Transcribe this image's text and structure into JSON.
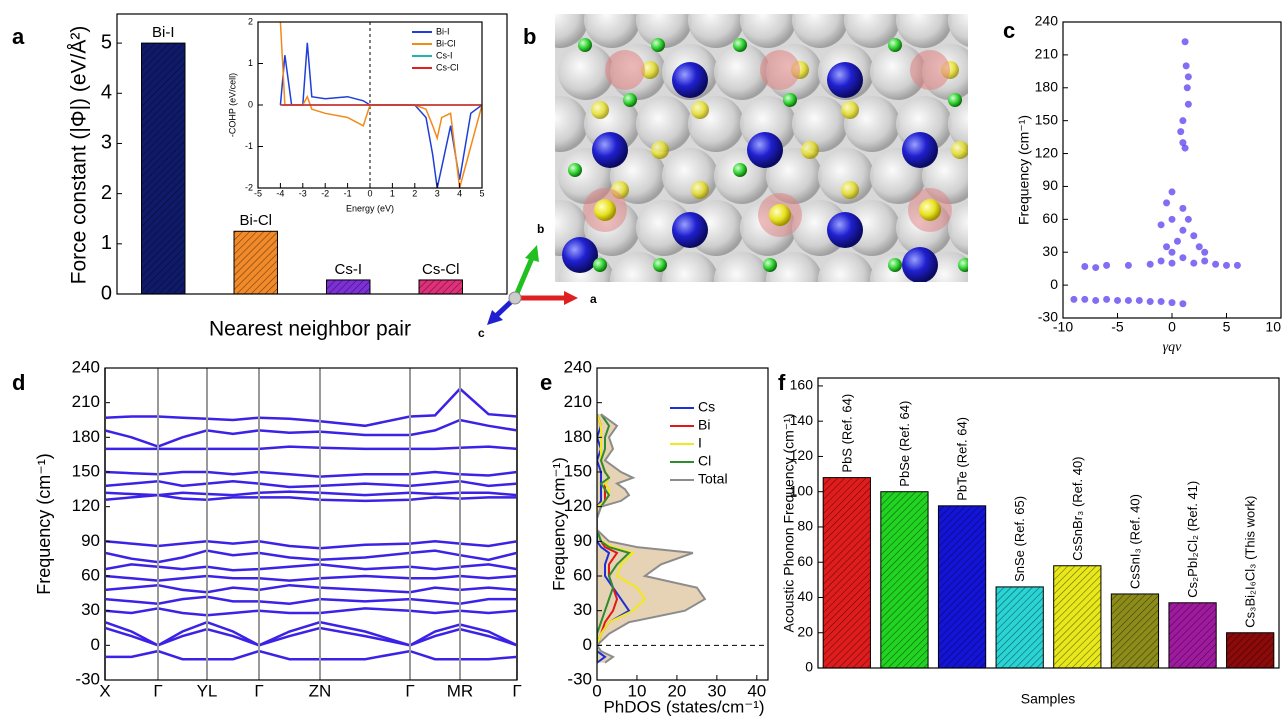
{
  "structure": {
    "label": "b",
    "axes": [
      "a",
      "b",
      "c"
    ]
  },
  "chart_data": [
    {
      "type": "bar",
      "label": "a",
      "y_label": "Force constant (|Φ|) (eV/Å²)",
      "x_label": "Nearest neighbor pair",
      "categories": [
        "Bi-I",
        "Bi-Cl",
        "Cs-I",
        "Cs-Cl"
      ],
      "values": [
        5.0,
        1.25,
        0.28,
        0.28
      ],
      "colors": [
        "#0f1a6b",
        "#f28a2a",
        "#7d2fd8",
        "#e0307a"
      ],
      "hatch": true,
      "ylim": [
        0,
        5.58
      ],
      "yticks": [
        0,
        1,
        2,
        3,
        4,
        5
      ]
    },
    {
      "type": "line",
      "y_label": "-COHP (eV/cell)",
      "x_label": "Energy (eV)",
      "x": [
        -4,
        -3.8,
        -3.5,
        -3,
        -2.8,
        -2.6,
        -2,
        -1,
        -0.3,
        0,
        2,
        2.5,
        2.8,
        3,
        3.2,
        3.6,
        4,
        4.5,
        5
      ],
      "series": [
        {
          "name": "Bi-I",
          "color": "#1f3fd8",
          "values": [
            0,
            1.2,
            0,
            0,
            1.5,
            0.2,
            0.15,
            0.2,
            0.1,
            0,
            0,
            -0.3,
            -1.2,
            -2,
            -1.5,
            -0.5,
            -1.8,
            -0.2,
            0
          ]
        },
        {
          "name": "Bi-Cl",
          "color": "#f28a1a",
          "values": [
            2,
            0,
            0,
            0,
            0.2,
            -0.1,
            -0.2,
            -0.3,
            -0.5,
            0,
            0,
            -0.1,
            -0.5,
            -0.8,
            -0.3,
            -0.2,
            -2,
            -1,
            0
          ]
        },
        {
          "name": "Cs-I",
          "color": "#1fb5b5",
          "values": [
            0,
            0,
            0,
            0,
            0,
            0,
            0,
            0,
            0,
            0,
            0,
            0,
            0,
            0,
            0,
            0,
            0,
            0,
            0
          ]
        },
        {
          "name": "Cs-Cl",
          "color": "#e0201e",
          "values": [
            0,
            0,
            0,
            0,
            0,
            0,
            0,
            0,
            0,
            0,
            0,
            0,
            0,
            0,
            0,
            0,
            0,
            0,
            0
          ]
        }
      ],
      "xlim": [
        -5,
        5
      ],
      "xticks": [
        -5,
        -4,
        -3,
        -2,
        -1,
        0,
        1,
        2,
        3,
        4,
        5
      ],
      "ylim": [
        -2,
        2
      ],
      "yticks": [
        -2,
        -1,
        0,
        1,
        2
      ]
    },
    {
      "type": "scatter",
      "label": "c",
      "y_label": "Frequency (cm⁻¹)",
      "x_label": "γqν",
      "color": "#5b3cf0",
      "x": [
        -9,
        -8,
        -7,
        -6,
        -5,
        -4,
        -3,
        -2,
        -1,
        0,
        1,
        -8,
        -6,
        -4,
        -2,
        0,
        2,
        4,
        5,
        6,
        -7,
        3,
        1,
        -1,
        0,
        0.5,
        1,
        1.5,
        -0.5,
        2,
        2.5,
        3,
        0,
        -0.5,
        0,
        -1,
        1,
        1,
        0.8,
        1,
        1.2,
        1.5,
        1.4,
        1.3,
        1.2,
        1.5
      ],
      "values": [
        -13,
        -13,
        -14,
        -13,
        -14,
        -14,
        -14,
        -15,
        -15,
        -16,
        -17,
        17,
        18,
        18,
        19,
        20,
        20,
        19,
        18,
        18,
        16,
        22,
        25,
        22,
        30,
        40,
        50,
        60,
        35,
        45,
        35,
        30,
        60,
        75,
        85,
        55,
        70,
        130,
        140,
        150,
        125,
        165,
        180,
        200,
        222,
        190
      ],
      "xlim": [
        -10,
        10
      ],
      "xticks": [
        -10,
        -5,
        0,
        5,
        10
      ],
      "ylim": [
        -30,
        240
      ],
      "yticks": [
        -30,
        0,
        30,
        60,
        90,
        120,
        150,
        180,
        210,
        240
      ]
    },
    {
      "type": "line",
      "label": "d",
      "y_label": "Frequency (cm⁻¹)",
      "color": "#3b22e6",
      "xgrid": true,
      "x": [
        0,
        0.265,
        0.53,
        0.775,
        1.02,
        1.28,
        1.54,
        1.845,
        2.15,
        2.6,
        3.05,
        3.3,
        3.55,
        3.835,
        4.12
      ],
      "xticks": [
        {
          "value": 0,
          "label": "X"
        },
        {
          "value": 0.53,
          "label": "Γ"
        },
        {
          "value": 1.02,
          "label": "YL"
        },
        {
          "value": 1.54,
          "label": "Γ"
        },
        {
          "value": 2.15,
          "label": "ZN"
        },
        {
          "value": 3.05,
          "label": "Γ"
        },
        {
          "value": 3.55,
          "label": "MR"
        },
        {
          "value": 4.12,
          "label": "Γ"
        }
      ],
      "series": [
        {
          "values": [
            197,
            198,
            198,
            197,
            196,
            195,
            197,
            196,
            194,
            190,
            198,
            199,
            222,
            200,
            198
          ]
        },
        {
          "values": [
            186,
            180,
            172,
            180,
            186,
            183,
            186,
            184,
            185,
            182,
            182,
            186,
            195,
            190,
            186
          ]
        },
        {
          "values": [
            170,
            170,
            170,
            170,
            170,
            170,
            170,
            172,
            171,
            170,
            170,
            170,
            171,
            172,
            170
          ]
        },
        {
          "values": [
            150,
            149,
            148,
            150,
            150,
            148,
            150,
            148,
            146,
            148,
            148,
            150,
            148,
            147,
            150
          ]
        },
        {
          "values": [
            138,
            140,
            142,
            138,
            140,
            142,
            140,
            137,
            138,
            140,
            138,
            140,
            142,
            138,
            140
          ]
        },
        {
          "values": [
            132,
            131,
            130,
            132,
            131,
            130,
            132,
            133,
            132,
            130,
            132,
            131,
            132,
            132,
            130
          ]
        },
        {
          "values": [
            126,
            128,
            130,
            127,
            126,
            128,
            128,
            128,
            126,
            125,
            126,
            128,
            127,
            128,
            128
          ]
        },
        {
          "values": [
            90,
            88,
            86,
            88,
            90,
            88,
            90,
            86,
            84,
            87,
            88,
            90,
            88,
            86,
            90
          ]
        },
        {
          "values": [
            80,
            75,
            72,
            76,
            82,
            78,
            80,
            76,
            74,
            76,
            80,
            82,
            78,
            74,
            80
          ]
        },
        {
          "values": [
            66,
            70,
            68,
            66,
            68,
            65,
            66,
            68,
            70,
            66,
            68,
            66,
            68,
            70,
            66
          ]
        },
        {
          "values": [
            60,
            58,
            56,
            58,
            60,
            58,
            58,
            56,
            58,
            60,
            58,
            58,
            60,
            58,
            60
          ]
        },
        {
          "values": [
            48,
            50,
            52,
            48,
            46,
            50,
            48,
            52,
            50,
            48,
            46,
            50,
            48,
            50,
            48
          ]
        },
        {
          "values": [
            40,
            38,
            36,
            40,
            42,
            38,
            38,
            36,
            40,
            38,
            40,
            38,
            36,
            40,
            40
          ]
        },
        {
          "values": [
            30,
            28,
            32,
            28,
            26,
            28,
            30,
            28,
            28,
            32,
            30,
            28,
            30,
            28,
            30
          ]
        },
        {
          "values": [
            20,
            12,
            0,
            12,
            20,
            12,
            0,
            12,
            20,
            12,
            0,
            12,
            18,
            12,
            0
          ]
        },
        {
          "values": [
            15,
            8,
            0,
            8,
            14,
            8,
            0,
            8,
            15,
            8,
            0,
            8,
            14,
            8,
            0
          ]
        },
        {
          "values": [
            -10,
            -10,
            -5,
            -12,
            -12,
            -12,
            -5,
            -12,
            -12,
            -12,
            -5,
            -12,
            -12,
            -12,
            -10
          ]
        }
      ],
      "xlim": [
        0,
        4.12
      ],
      "ylim": [
        -30,
        240
      ],
      "yticks": [
        -30,
        0,
        30,
        60,
        90,
        120,
        150,
        180,
        210,
        240
      ]
    },
    {
      "type": "line",
      "orientation": "horizontal",
      "label": "e",
      "y_label": "Frequency (cm⁻¹)",
      "x_label": "PhDOS (states/cm⁻¹)",
      "y": [
        -15,
        -10,
        -5,
        0,
        10,
        20,
        30,
        40,
        50,
        60,
        70,
        80,
        85,
        90,
        100,
        110,
        120,
        125,
        130,
        135,
        140,
        145,
        150,
        160,
        170,
        180,
        190,
        200
      ],
      "series": [
        {
          "name": "Cs",
          "color": "#1f2fd8",
          "values": [
            0,
            2,
            0,
            0,
            1,
            3,
            8,
            6,
            4,
            2,
            2,
            3,
            1,
            0,
            0,
            0,
            0,
            1,
            1,
            1,
            1,
            1,
            1,
            0,
            1,
            0,
            1,
            0
          ]
        },
        {
          "name": "Bi",
          "color": "#e01818",
          "values": [
            0,
            0,
            0,
            0,
            1,
            2,
            4,
            5,
            4,
            3,
            3,
            5,
            2,
            1,
            0,
            0,
            0,
            2,
            2,
            2,
            2,
            3,
            2,
            1,
            1,
            1,
            1,
            0
          ]
        },
        {
          "name": "I",
          "color": "#f2e81a",
          "values": [
            0,
            0,
            0,
            0,
            1,
            3,
            9,
            12,
            10,
            5,
            6,
            9,
            4,
            1,
            0,
            0,
            0,
            2,
            3,
            3,
            2,
            3,
            2,
            1,
            1,
            1,
            1,
            0
          ]
        },
        {
          "name": "Cl",
          "color": "#2e8b2e",
          "values": [
            0,
            0,
            0,
            0,
            0,
            1,
            2,
            3,
            4,
            3,
            5,
            8,
            3,
            1,
            0,
            0,
            1,
            2,
            3,
            2,
            1,
            3,
            2,
            1,
            2,
            2,
            3,
            1
          ]
        },
        {
          "name": "Total",
          "color": "#8c8c8c",
          "fill": "#e6d2b5",
          "values": [
            2,
            4,
            1,
            0,
            3,
            8,
            22,
            27,
            25,
            12,
            16,
            24,
            10,
            3,
            0,
            0,
            1,
            6,
            8,
            7,
            5,
            9,
            6,
            2,
            4,
            3,
            5,
            1
          ]
        }
      ],
      "xlim": [
        0,
        42.8
      ],
      "xticks": [
        0,
        10,
        20,
        30,
        40
      ],
      "ylim": [
        -30,
        240
      ],
      "yticks": [
        -30,
        0,
        30,
        60,
        90,
        120,
        150,
        180,
        210,
        240
      ]
    },
    {
      "type": "bar",
      "label": "f",
      "y_label": "Acoustic Phonon Frequency (cm⁻¹)",
      "x_label": "Samples",
      "hatch": true,
      "categories": [
        "PbS (Ref. 64)",
        "PbSe (Ref. 64)",
        "PbTe (Ref. 64)",
        "SnSe (Ref. 65)",
        "CsSnBr₃ (Ref. 40)",
        "CsSnI₃ (Ref. 40)",
        "Cs₂PbI₂Cl₂ (Ref. 41)",
        "Cs₃Bi₂I₆Cl₃ (This work)"
      ],
      "values": [
        108,
        100,
        92,
        46,
        58,
        42,
        37,
        20
      ],
      "colors": [
        "#e01c1c",
        "#22d422",
        "#1414d8",
        "#2ad4d4",
        "#e8e81a",
        "#8c8c1a",
        "#a01aa0",
        "#8c0a0a"
      ],
      "label_colors": [
        "#000000",
        "#000000",
        "#000000",
        "#000000",
        "#000000",
        "#000000",
        "#000000",
        "#e01010"
      ],
      "ylim": [
        0,
        164.5
      ],
      "yticks": [
        0,
        20,
        40,
        60,
        80,
        100,
        120,
        140,
        160
      ]
    }
  ]
}
